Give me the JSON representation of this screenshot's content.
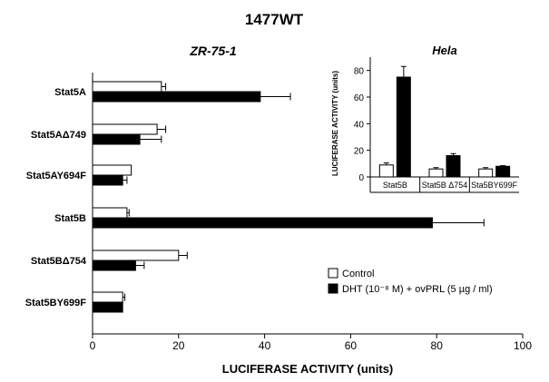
{
  "figure_title": "1477WT",
  "chart_data": [
    {
      "type": "bar",
      "orientation": "horizontal",
      "title": "ZR-75-1",
      "xlabel": "LUCIFERASE ACTIVITY (units)",
      "ylabel": "",
      "xlim": [
        0,
        100
      ],
      "xticks": [
        "0",
        "20",
        "40",
        "60",
        "80",
        "100"
      ],
      "categories": [
        "Stat5A",
        "Stat5AΔ749",
        "Stat5AY694F",
        "Stat5B",
        "Stat5BΔ754",
        "Stat5BY699F"
      ],
      "series": [
        {
          "name": "Control",
          "color": "#ffffff",
          "values": [
            16,
            15,
            9,
            8,
            20,
            7
          ],
          "errors": [
            1,
            2,
            0,
            0.5,
            2,
            0.5
          ]
        },
        {
          "name": "DHT (10⁻⁸ M) + ovPRL (5 µg / ml)",
          "color": "#000000",
          "values": [
            39,
            11,
            7,
            79,
            10,
            7
          ],
          "errors": [
            7,
            5,
            1,
            12,
            2,
            0
          ]
        }
      ],
      "legend": {
        "placement": "bottom-right",
        "entries": [
          "Control",
          "DHT (10⁻⁸ M) + ovPRL (5 µg / ml)"
        ]
      },
      "grid": false
    },
    {
      "type": "bar",
      "orientation": "vertical",
      "title": "Hela",
      "xlabel": "",
      "ylabel": "LUCIFERASE ACTIVITY (units)",
      "ylim": [
        0,
        90
      ],
      "yticks": [
        "0",
        "20",
        "40",
        "60",
        "80"
      ],
      "categories": [
        "Stat5B",
        "Stat5B Δ754",
        "Sta5BY699F"
      ],
      "series": [
        {
          "name": "Control",
          "color": "#ffffff",
          "values": [
            9,
            6,
            6
          ],
          "errors": [
            1.5,
            1,
            1
          ]
        },
        {
          "name": "DHT (10⁻⁸ M) + ovPRL (5 µg / ml)",
          "color": "#000000",
          "values": [
            75,
            16,
            8
          ],
          "errors": [
            8,
            1.5,
            0.5
          ]
        }
      ],
      "legend": {
        "placement": "none"
      },
      "grid": false
    }
  ]
}
